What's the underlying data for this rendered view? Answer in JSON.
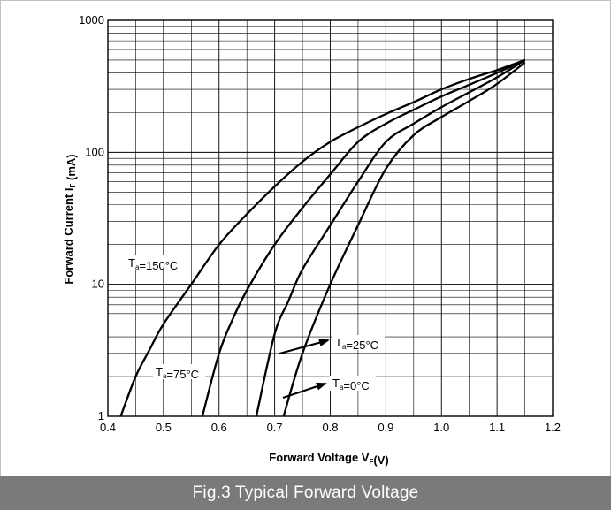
{
  "caption": "Fig.3 Typical Forward Voltage",
  "chart_data": {
    "type": "line",
    "title": "",
    "xlabel": "Forward Voltage V_F(V)",
    "ylabel": "Forward Current I_F (mA)",
    "xlim": [
      0.4,
      1.2
    ],
    "ylim": [
      1,
      1000
    ],
    "yscale": "log",
    "grid": true,
    "x_ticks": [
      "0.4",
      "0.5",
      "0.6",
      "0.7",
      "0.8",
      "0.9",
      "1.0",
      "1.1",
      "1.2"
    ],
    "y_ticks": [
      "1",
      "10",
      "100",
      "1000"
    ],
    "series": [
      {
        "name": "T_a=150°C",
        "points": [
          [
            0.423,
            1
          ],
          [
            0.45,
            2
          ],
          [
            0.475,
            3.2
          ],
          [
            0.5,
            5
          ],
          [
            0.55,
            10
          ],
          [
            0.6,
            20
          ],
          [
            0.65,
            34
          ],
          [
            0.7,
            55
          ],
          [
            0.75,
            85
          ],
          [
            0.8,
            120
          ],
          [
            0.85,
            155
          ],
          [
            0.9,
            195
          ],
          [
            0.95,
            240
          ],
          [
            1.0,
            300
          ],
          [
            1.05,
            360
          ],
          [
            1.1,
            420
          ],
          [
            1.15,
            500
          ]
        ]
      },
      {
        "name": "T_a=75°C",
        "points": [
          [
            0.57,
            1
          ],
          [
            0.6,
            3
          ],
          [
            0.625,
            5.5
          ],
          [
            0.65,
            9
          ],
          [
            0.7,
            20
          ],
          [
            0.75,
            38
          ],
          [
            0.8,
            68
          ],
          [
            0.85,
            120
          ],
          [
            0.9,
            165
          ],
          [
            0.95,
            210
          ],
          [
            1.0,
            265
          ],
          [
            1.05,
            325
          ],
          [
            1.1,
            400
          ],
          [
            1.15,
            500
          ]
        ]
      },
      {
        "name": "T_a=25°C",
        "points": [
          [
            0.667,
            1
          ],
          [
            0.7,
            4.2
          ],
          [
            0.725,
            7.5
          ],
          [
            0.75,
            13
          ],
          [
            0.8,
            28
          ],
          [
            0.85,
            60
          ],
          [
            0.9,
            120
          ],
          [
            0.95,
            165
          ],
          [
            1.0,
            220
          ],
          [
            1.05,
            285
          ],
          [
            1.1,
            370
          ],
          [
            1.15,
            500
          ]
        ]
      },
      {
        "name": "T_a=0°C",
        "points": [
          [
            0.716,
            1
          ],
          [
            0.75,
            3
          ],
          [
            0.8,
            10
          ],
          [
            0.85,
            28
          ],
          [
            0.9,
            75
          ],
          [
            0.95,
            135
          ],
          [
            1.0,
            185
          ],
          [
            1.05,
            245
          ],
          [
            1.1,
            330
          ],
          [
            1.15,
            480
          ]
        ]
      }
    ],
    "annotations": [
      {
        "text": "T_a=150°C",
        "series": 0
      },
      {
        "text": "T_a=75°C",
        "series": 1
      },
      {
        "text": "T_a=25°C",
        "series": 2,
        "arrow": true
      },
      {
        "text": "T_a=0°C",
        "series": 3,
        "arrow": true
      }
    ]
  }
}
